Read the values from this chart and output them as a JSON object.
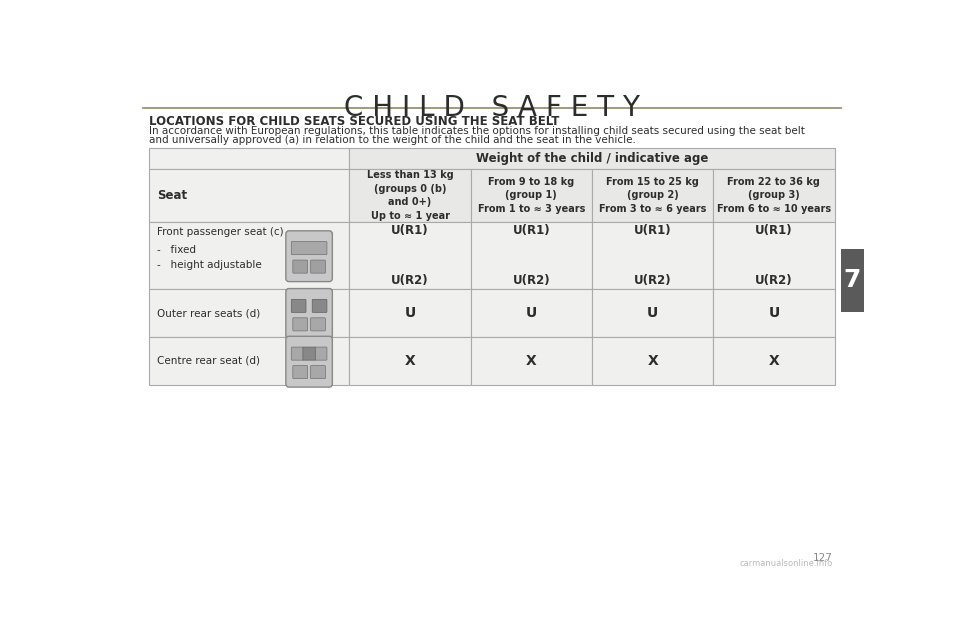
{
  "title": "C H I L D   S A F E T Y",
  "title_color": "#2d2d2d",
  "bg_color": "#ffffff",
  "section_title": "LOCATIONS FOR CHILD SEATS SECURED USING THE SEAT BELT",
  "body_text_line1": "In accordance with European regulations, this table indicates the options for installing child seats secured using the seat belt",
  "body_text_line2": "and universally approved (a) in relation to the weight of the child and the seat in the vehicle.",
  "tab_header_main": "Weight of the child / indicative age",
  "col0_header": "Seat",
  "col_headers": [
    "Less than 13 kg\n(groups 0 (b)\nand 0+)\nUp to ≈ 1 year",
    "From 9 to 18 kg\n(group 1)\nFrom 1 to ≈ 3 years",
    "From 15 to 25 kg\n(group 2)\nFrom 3 to ≈ 6 years",
    "From 22 to 36 kg\n(group 3)\nFrom 6 to ≈ 10 years"
  ],
  "row_labels": [
    "Front passenger seat (c)",
    "Outer rear seats (d)",
    "Centre rear seat (d)"
  ],
  "row_sub_labels": [
    [
      "-   fixed",
      "-   height adjustable"
    ],
    [],
    []
  ],
  "row_values": [
    [
      "U(R1)\n\nU(R2)",
      "U(R1)\n\nU(R2)",
      "U(R1)\n\nU(R2)",
      "U(R1)\n\nU(R2)"
    ],
    [
      "U",
      "U",
      "U",
      "U"
    ],
    [
      "X",
      "X",
      "X",
      "X"
    ]
  ],
  "table_bg_light": "#f0f0ee",
  "table_bg_white": "#ffffff",
  "table_border": "#aaaaaa",
  "header_bg": "#e8e8e6",
  "sidebar_color": "#5a5a5a",
  "sidebar_text": "7",
  "page_number": "127",
  "watermark": "carmanualsonline.info"
}
